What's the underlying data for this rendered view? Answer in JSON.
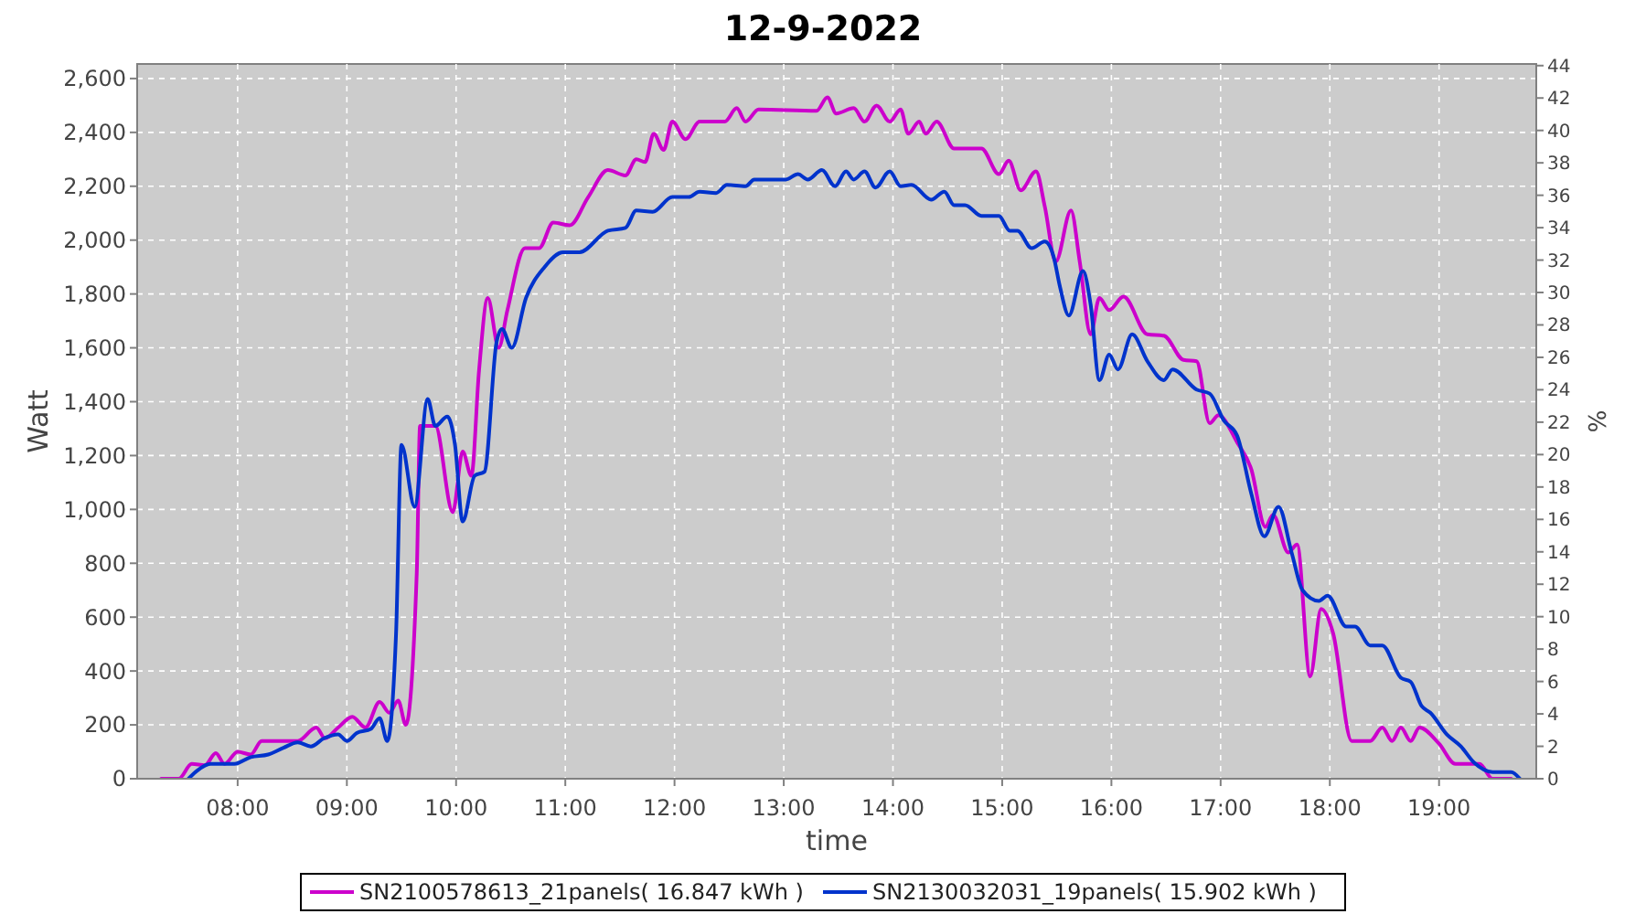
{
  "chart_data": {
    "type": "line",
    "title": "12-9-2022",
    "xlabel": "time",
    "ylabel": "Watt",
    "y2label": "%",
    "xlim": [
      7.08,
      19.89
    ],
    "xticks": [
      {
        "value": 8,
        "label": "08:00"
      },
      {
        "value": 9,
        "label": "09:00"
      },
      {
        "value": 10,
        "label": "10:00"
      },
      {
        "value": 11,
        "label": "11:00"
      },
      {
        "value": 12,
        "label": "12:00"
      },
      {
        "value": 13,
        "label": "13:00"
      },
      {
        "value": 14,
        "label": "14:00"
      },
      {
        "value": 15,
        "label": "15:00"
      },
      {
        "value": 16,
        "label": "16:00"
      },
      {
        "value": 17,
        "label": "17:00"
      },
      {
        "value": 18,
        "label": "18:00"
      },
      {
        "value": 19,
        "label": "19:00"
      }
    ],
    "ylim": [
      0,
      2654
    ],
    "yticks": [
      0,
      200,
      400,
      600,
      800,
      {
        "value": 1000,
        "label": "1,000"
      },
      {
        "value": 1200,
        "label": "1,200"
      },
      {
        "value": 1400,
        "label": "1,400"
      },
      {
        "value": 1600,
        "label": "1,600"
      },
      {
        "value": 1800,
        "label": "1,800"
      },
      {
        "value": 2000,
        "label": "2,000"
      },
      {
        "value": 2200,
        "label": "2,200"
      },
      {
        "value": 2400,
        "label": "2,400"
      },
      {
        "value": 2600,
        "label": "2,600"
      }
    ],
    "y2lim": [
      0,
      44.1
    ],
    "y2ticks": [
      0,
      2,
      4,
      6,
      8,
      10,
      12,
      14,
      16,
      18,
      20,
      22,
      24,
      26,
      28,
      30,
      32,
      34,
      36,
      38,
      40,
      42,
      44
    ],
    "grid": true,
    "legend": "bottom",
    "line_style": "solid",
    "series": [
      {
        "name": "SN2100578613_21panels( 16.847 kWh )",
        "color": "#cc00cc",
        "x": [
          7.3,
          7.46,
          7.58,
          7.7,
          7.8,
          7.88,
          8.0,
          8.12,
          8.22,
          8.55,
          8.72,
          8.8,
          8.92,
          9.05,
          9.17,
          9.3,
          9.39,
          9.47,
          9.54,
          9.64,
          9.67,
          9.81,
          9.97,
          10.06,
          10.14,
          10.21,
          10.29,
          10.39,
          10.47,
          10.63,
          10.76,
          10.89,
          11.04,
          11.21,
          11.39,
          11.55,
          11.65,
          11.73,
          11.81,
          11.9,
          11.98,
          12.1,
          12.23,
          12.46,
          12.57,
          12.65,
          12.77,
          13.3,
          13.4,
          13.48,
          13.64,
          13.74,
          13.85,
          13.97,
          14.07,
          14.14,
          14.24,
          14.3,
          14.4,
          14.56,
          14.81,
          14.97,
          15.06,
          15.17,
          15.31,
          15.39,
          15.49,
          15.63,
          15.71,
          15.81,
          15.89,
          15.98,
          16.11,
          16.33,
          16.48,
          16.66,
          16.78,
          16.9,
          16.98,
          17.15,
          17.28,
          17.41,
          17.48,
          17.62,
          17.7,
          17.82,
          17.92,
          18.03,
          18.2,
          18.37,
          18.48,
          18.57,
          18.65,
          18.74,
          18.82,
          19.0,
          19.15,
          19.37,
          19.49,
          19.66
        ],
        "values": [
          0,
          0,
          55,
          50,
          95,
          55,
          100,
          90,
          140,
          140,
          190,
          150,
          190,
          230,
          190,
          285,
          245,
          290,
          200,
          765,
          1310,
          1310,
          990,
          1215,
          1125,
          1515,
          1785,
          1600,
          1740,
          1970,
          1970,
          2065,
          2055,
          2160,
          2260,
          2240,
          2300,
          2290,
          2395,
          2335,
          2440,
          2375,
          2440,
          2440,
          2490,
          2440,
          2485,
          2480,
          2530,
          2470,
          2490,
          2440,
          2500,
          2440,
          2485,
          2395,
          2440,
          2395,
          2440,
          2340,
          2340,
          2245,
          2295,
          2185,
          2255,
          2125,
          1920,
          2110,
          1920,
          1650,
          1785,
          1740,
          1790,
          1650,
          1645,
          1555,
          1550,
          1320,
          1350,
          1250,
          1150,
          935,
          980,
          840,
          870,
          380,
          630,
          540,
          140,
          140,
          190,
          140,
          190,
          140,
          190,
          130,
          55,
          55,
          0,
          0
        ]
      },
      {
        "name": "SN2130032031_19panels( 15.902 kWh )",
        "color": "#0033cc",
        "x": [
          7.55,
          7.63,
          7.75,
          7.97,
          8.12,
          8.28,
          8.42,
          8.55,
          8.67,
          8.79,
          8.92,
          9.0,
          9.09,
          9.22,
          9.3,
          9.37,
          9.45,
          9.5,
          9.62,
          9.74,
          9.81,
          9.92,
          9.99,
          10.06,
          10.17,
          10.26,
          10.37,
          10.42,
          10.51,
          10.64,
          10.81,
          10.98,
          11.13,
          11.39,
          11.55,
          11.65,
          11.8,
          11.98,
          12.13,
          12.23,
          12.38,
          12.48,
          12.65,
          12.73,
          13.02,
          13.13,
          13.22,
          13.35,
          13.47,
          13.57,
          13.64,
          13.74,
          13.84,
          13.97,
          14.07,
          14.17,
          14.35,
          14.47,
          14.56,
          14.66,
          14.81,
          14.97,
          15.07,
          15.14,
          15.27,
          15.39,
          15.47,
          15.53,
          15.61,
          15.74,
          15.81,
          15.89,
          15.98,
          16.06,
          16.19,
          16.33,
          16.48,
          16.56,
          16.78,
          16.9,
          17.03,
          17.15,
          17.28,
          17.4,
          17.53,
          17.65,
          17.75,
          17.9,
          17.98,
          18.15,
          18.23,
          18.37,
          18.48,
          18.65,
          18.74,
          18.84,
          18.92,
          19.07,
          19.2,
          19.32,
          19.49,
          19.66,
          19.74
        ],
        "values": [
          0,
          30,
          55,
          55,
          80,
          90,
          115,
          135,
          120,
          150,
          165,
          140,
          170,
          185,
          225,
          140,
          535,
          1240,
          1010,
          1410,
          1310,
          1345,
          1240,
          955,
          1125,
          1140,
          1620,
          1670,
          1600,
          1785,
          1900,
          1955,
          1955,
          2035,
          2045,
          2110,
          2105,
          2160,
          2160,
          2180,
          2175,
          2205,
          2200,
          2225,
          2225,
          2245,
          2225,
          2260,
          2200,
          2255,
          2225,
          2255,
          2195,
          2255,
          2200,
          2205,
          2150,
          2180,
          2130,
          2130,
          2090,
          2090,
          2035,
          2035,
          1970,
          1995,
          1940,
          1825,
          1720,
          1885,
          1760,
          1480,
          1575,
          1520,
          1650,
          1550,
          1480,
          1520,
          1445,
          1430,
          1330,
          1275,
          1060,
          900,
          1010,
          840,
          700,
          660,
          680,
          565,
          565,
          495,
          495,
          375,
          360,
          270,
          245,
          165,
          120,
          60,
          25,
          25,
          0
        ]
      }
    ]
  }
}
